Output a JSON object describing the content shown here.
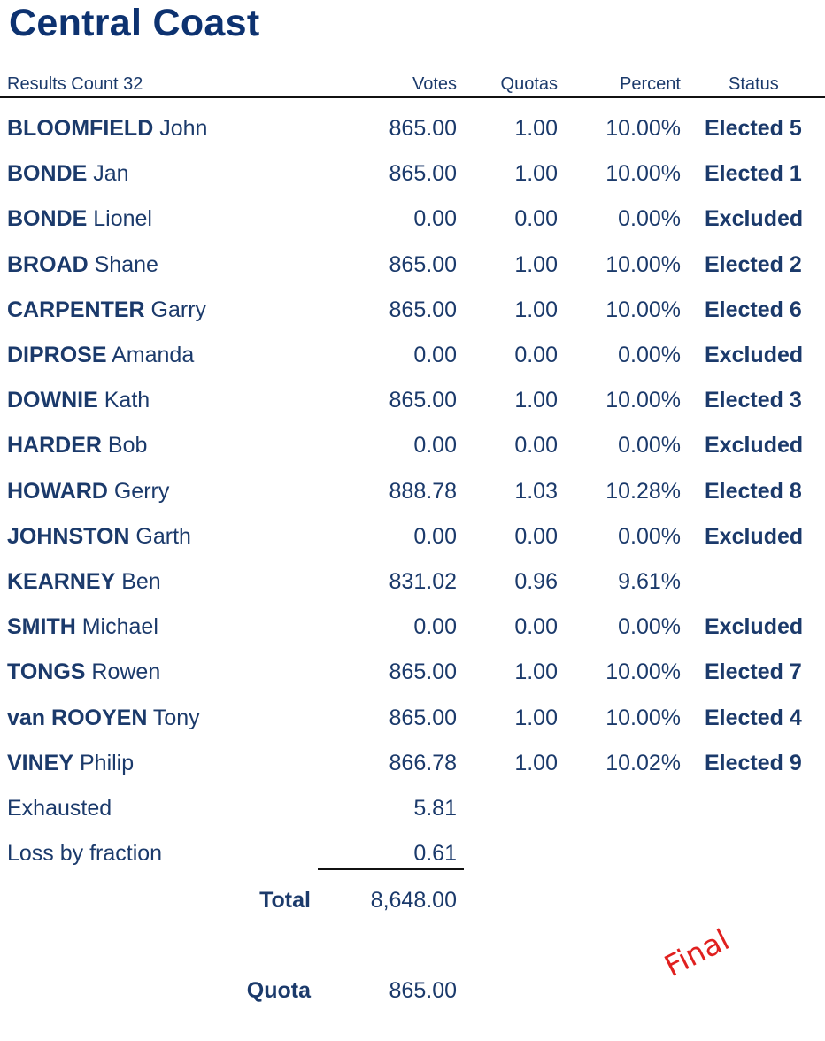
{
  "title": "Central Coast",
  "header": {
    "count_label": "Results Count 32",
    "votes": "Votes",
    "quotas": "Quotas",
    "percent": "Percent",
    "status": "Status"
  },
  "rows": [
    {
      "surname": "BLOOMFIELD",
      "given": "John",
      "votes": "865.00",
      "quotas": "1.00",
      "percent": "10.00%",
      "status": "Elected 5"
    },
    {
      "surname": "BONDE",
      "given": "Jan",
      "votes": "865.00",
      "quotas": "1.00",
      "percent": "10.00%",
      "status": "Elected 1"
    },
    {
      "surname": "BONDE",
      "given": "Lionel",
      "votes": "0.00",
      "quotas": "0.00",
      "percent": "0.00%",
      "status": "Excluded"
    },
    {
      "surname": "BROAD",
      "given": "Shane",
      "votes": "865.00",
      "quotas": "1.00",
      "percent": "10.00%",
      "status": "Elected 2"
    },
    {
      "surname": "CARPENTER",
      "given": "Garry",
      "votes": "865.00",
      "quotas": "1.00",
      "percent": "10.00%",
      "status": "Elected 6"
    },
    {
      "surname": "DIPROSE",
      "given": "Amanda",
      "votes": "0.00",
      "quotas": "0.00",
      "percent": "0.00%",
      "status": "Excluded"
    },
    {
      "surname": "DOWNIE",
      "given": "Kath",
      "votes": "865.00",
      "quotas": "1.00",
      "percent": "10.00%",
      "status": "Elected 3"
    },
    {
      "surname": "HARDER",
      "given": "Bob",
      "votes": "0.00",
      "quotas": "0.00",
      "percent": "0.00%",
      "status": "Excluded"
    },
    {
      "surname": "HOWARD",
      "given": "Gerry",
      "votes": "888.78",
      "quotas": "1.03",
      "percent": "10.28%",
      "status": "Elected 8"
    },
    {
      "surname": "JOHNSTON",
      "given": "Garth",
      "votes": "0.00",
      "quotas": "0.00",
      "percent": "0.00%",
      "status": "Excluded"
    },
    {
      "surname": "KEARNEY",
      "given": "Ben",
      "votes": "831.02",
      "quotas": "0.96",
      "percent": "9.61%",
      "status": ""
    },
    {
      "surname": "SMITH",
      "given": "Michael",
      "votes": "0.00",
      "quotas": "0.00",
      "percent": "0.00%",
      "status": "Excluded"
    },
    {
      "surname": "TONGS",
      "given": "Rowen",
      "votes": "865.00",
      "quotas": "1.00",
      "percent": "10.00%",
      "status": "Elected 7"
    },
    {
      "surname": "van ROOYEN",
      "given": "Tony",
      "votes": "865.00",
      "quotas": "1.00",
      "percent": "10.00%",
      "status": "Elected 4"
    },
    {
      "surname": "VINEY",
      "given": "Philip",
      "votes": "866.78",
      "quotas": "1.00",
      "percent": "10.02%",
      "status": "Elected 9"
    }
  ],
  "extras": [
    {
      "label": "Exhausted",
      "votes": "5.81"
    },
    {
      "label": "Loss by fraction",
      "votes": "0.61"
    }
  ],
  "total": {
    "label": "Total",
    "value": "8,648.00"
  },
  "quota": {
    "label": "Quota",
    "value": "865.00"
  },
  "stamp": "Final",
  "colors": {
    "title": "#0d3270",
    "text": "#1b3a6b",
    "stamp": "#e0201f"
  }
}
